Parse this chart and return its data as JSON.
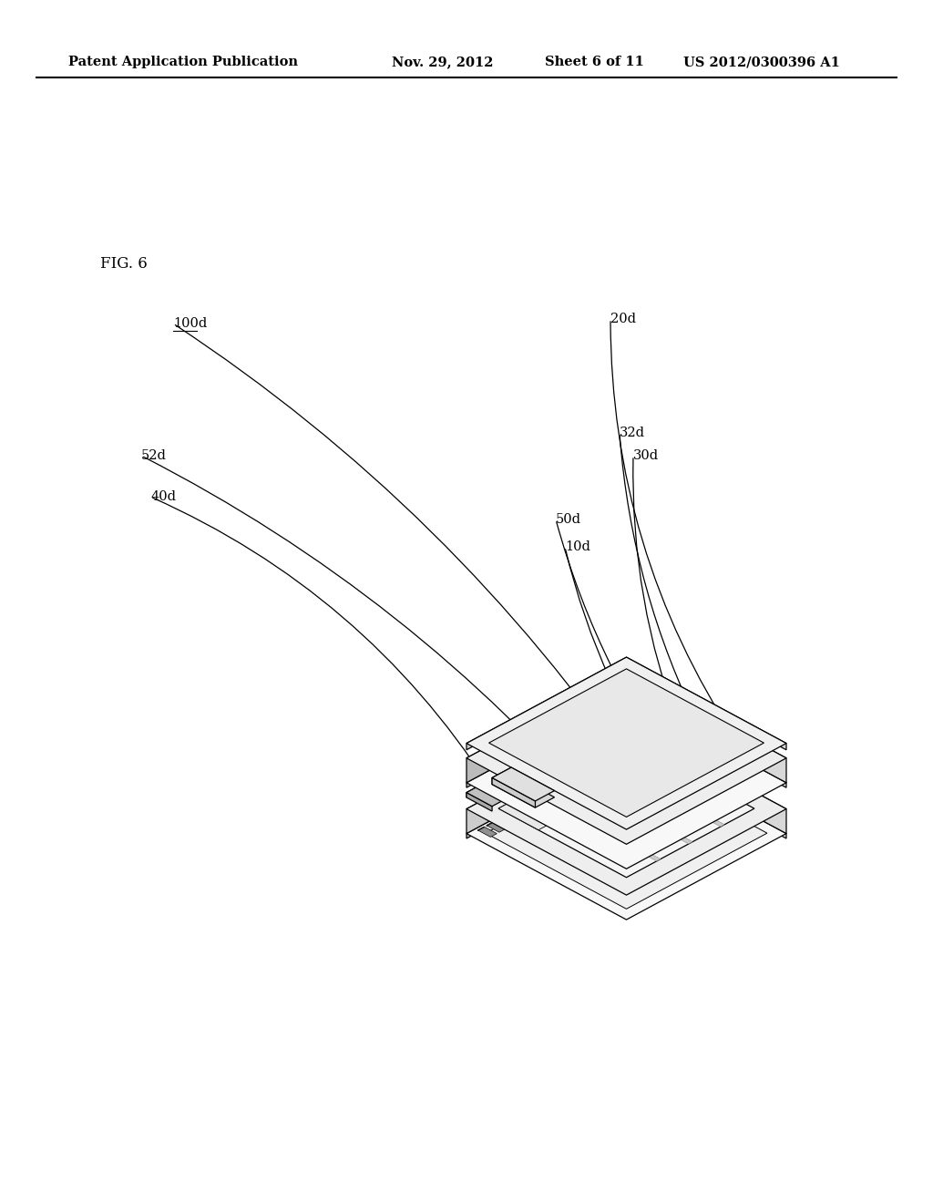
{
  "bg_color": "#ffffff",
  "header_line1": "Patent Application Publication",
  "header_date": "Nov. 29, 2012",
  "header_sheet": "Sheet 6 of 11",
  "header_patent": "US 2012/0300396 A1",
  "fig_label": "FIG. 6",
  "underline_labels": [
    "100d"
  ]
}
